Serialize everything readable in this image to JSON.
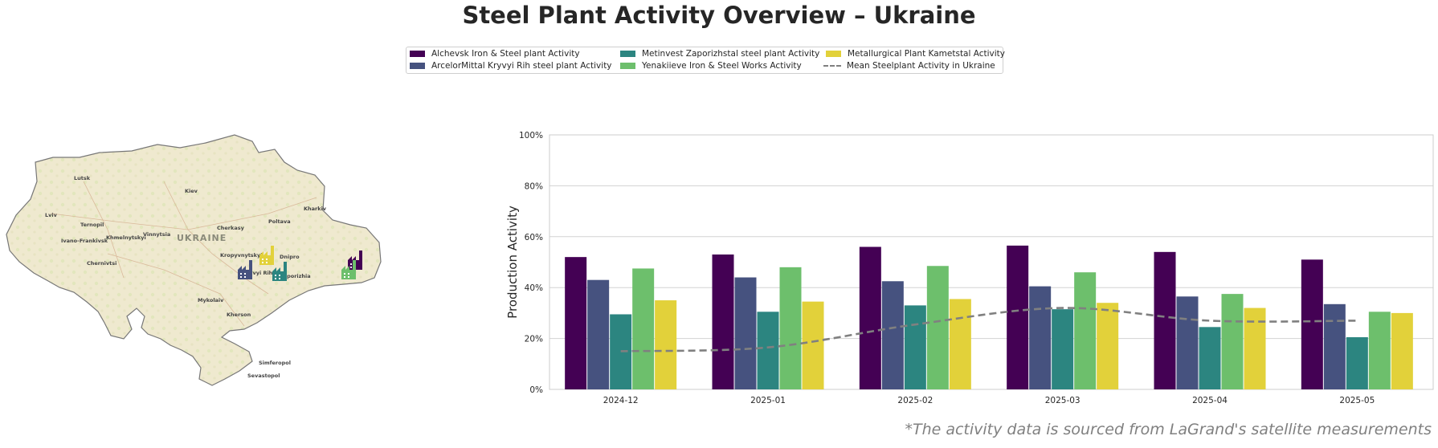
{
  "title": "Steel Plant Activity Overview – Ukraine",
  "footnote": "*The activity data is sourced from LaGrand's satellite measurements",
  "legend": {
    "items": [
      {
        "label": "Alchevsk Iron & Steel plant Activity",
        "color": "#440154",
        "kind": "bar"
      },
      {
        "label": "ArcelorMittal Kryvyi Rih steel plant Activity",
        "color": "#46527f",
        "kind": "bar"
      },
      {
        "label": "Metinvest Zaporizhstal steel plant Activity",
        "color": "#2c8580",
        "kind": "bar"
      },
      {
        "label": "Yenakiieve Iron & Steel Works Activity",
        "color": "#6dbf6c",
        "kind": "bar"
      },
      {
        "label": "Metallurgical Plant Kametstal Activity",
        "color": "#e2d13a",
        "kind": "bar"
      },
      {
        "label": "Mean Steelplant Activity in Ukraine",
        "color": "#808080",
        "kind": "line"
      }
    ]
  },
  "map": {
    "country_label": "UKRAINE",
    "cities": [
      "Lutsk",
      "Lviv",
      "Ternopil",
      "Ivano-Frankivsk",
      "Khmelnytskyi",
      "Vinnytsia",
      "Chernivtsi",
      "Kiev",
      "Cherkasy",
      "Poltava",
      "Kharkiv",
      "Kropyvnytskyi",
      "Dnipro",
      "Kryvyi Rih",
      "Zaporizhia",
      "Mykolaiv",
      "Kherson",
      "Simferopol",
      "Sevastopol"
    ],
    "marker_icon": "factory-icon"
  },
  "chart_data": {
    "type": "bar",
    "title": "",
    "xlabel": "",
    "ylabel": "Production Activity",
    "ylim": [
      0,
      100
    ],
    "yticks": [
      "0%",
      "20%",
      "40%",
      "60%",
      "80%",
      "100%"
    ],
    "grid": true,
    "categories": [
      "2024-12",
      "2025-01",
      "2025-02",
      "2025-03",
      "2025-04",
      "2025-05"
    ],
    "series": [
      {
        "name": "Alchevsk Iron & Steel plant Activity",
        "color": "#440154",
        "values": [
          52,
          53,
          56,
          56.5,
          54,
          51
        ]
      },
      {
        "name": "ArcelorMittal Kryvyi Rih steel plant Activity",
        "color": "#46527f",
        "values": [
          43,
          44,
          42.5,
          40.5,
          36.5,
          33.5
        ]
      },
      {
        "name": "Metinvest Zaporizhstal steel plant Activity",
        "color": "#2c8580",
        "values": [
          29.5,
          30.5,
          33,
          31.5,
          24.5,
          20.5
        ]
      },
      {
        "name": "Yenakiieve Iron & Steel Works Activity",
        "color": "#6dbf6c",
        "values": [
          47.5,
          48,
          48.5,
          46,
          37.5,
          30.5
        ]
      },
      {
        "name": "Metallurgical Plant Kametstal Activity",
        "color": "#e2d13a",
        "values": [
          35,
          34.5,
          35.5,
          34,
          32,
          30
        ]
      }
    ],
    "mean_line": {
      "name": "Mean Steelplant Activity in Ukraine",
      "color": "#808080",
      "values": [
        15,
        16.5,
        25.5,
        32,
        27,
        27
      ]
    }
  }
}
